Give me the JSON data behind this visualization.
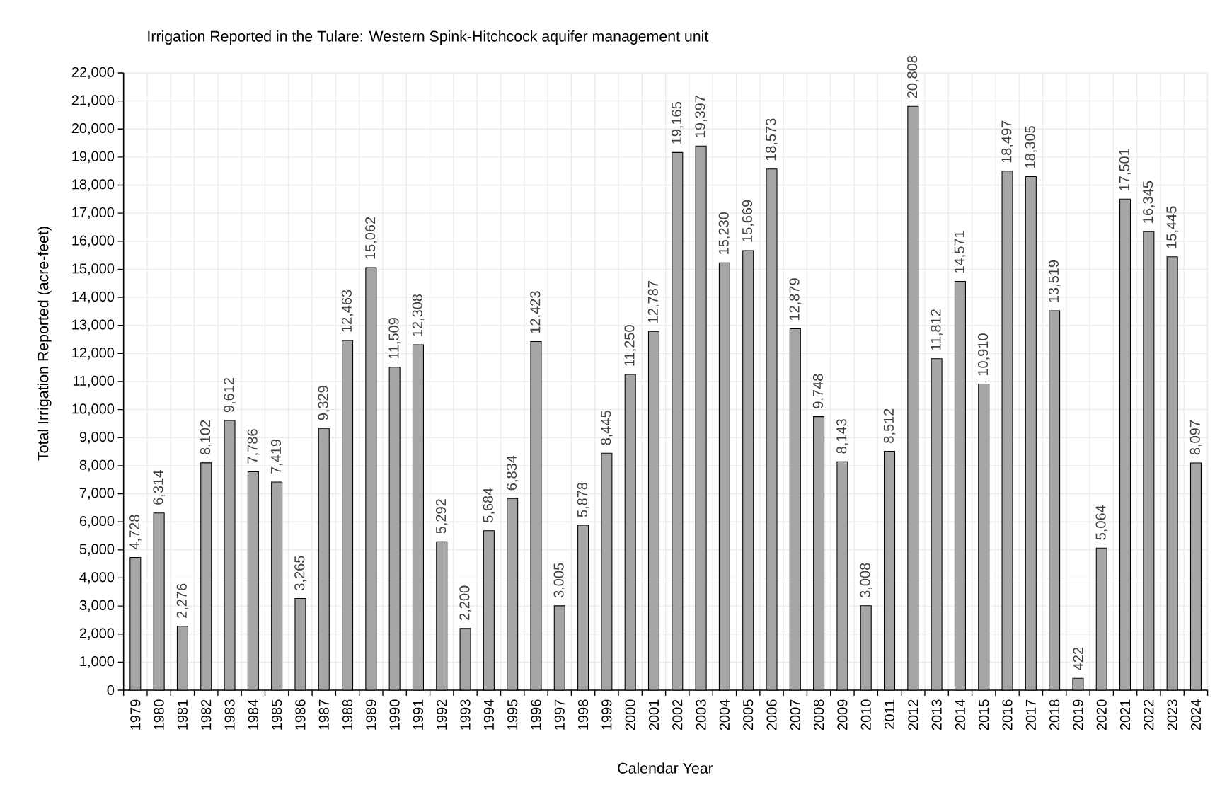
{
  "chart_data": {
    "type": "bar",
    "title": "Irrigation Reported in the Tulare: Western Spink-Hitchcock aquifer management unit",
    "xlabel": "Calendar Year",
    "ylabel": "Total Irrigation Reported (acre-feet)",
    "categories": [
      "1979",
      "1980",
      "1981",
      "1982",
      "1983",
      "1984",
      "1985",
      "1986",
      "1987",
      "1988",
      "1989",
      "1990",
      "1991",
      "1992",
      "1993",
      "1994",
      "1995",
      "1996",
      "1997",
      "1998",
      "1999",
      "2000",
      "2001",
      "2002",
      "2003",
      "2004",
      "2005",
      "2006",
      "2007",
      "2008",
      "2009",
      "2010",
      "2011",
      "2012",
      "2013",
      "2014",
      "2015",
      "2016",
      "2017",
      "2018",
      "2019",
      "2020",
      "2021",
      "2022",
      "2023",
      "2024"
    ],
    "values": [
      4728,
      6314,
      2276,
      8102,
      9612,
      7786,
      7419,
      3265,
      9329,
      12463,
      15062,
      11509,
      12308,
      5292,
      2200,
      5684,
      6834,
      12423,
      3005,
      5878,
      8445,
      11250,
      12787,
      19165,
      19397,
      15230,
      15669,
      18573,
      12879,
      9748,
      8143,
      3008,
      8512,
      20808,
      11812,
      14571,
      10910,
      18497,
      18305,
      13519,
      422,
      5064,
      17501,
      16345,
      15445,
      8097
    ],
    "value_labels": [
      "4,728",
      "6,314",
      "2,276",
      "8,102",
      "9,612",
      "7,786",
      "7,419",
      "3,265",
      "9,329",
      "12,463",
      "15,062",
      "11,509",
      "12,308",
      "5,292",
      "2,200",
      "5,684",
      "6,834",
      "12,423",
      "3,005",
      "5,878",
      "8,445",
      "11,250",
      "12,787",
      "19,165",
      "19,397",
      "15,230",
      "15,669",
      "18,573",
      "12,879",
      "9,748",
      "8,143",
      "3,008",
      "8,512",
      "20,808",
      "11,812",
      "14,571",
      "10,910",
      "18,497",
      "18,305",
      "13,519",
      "422",
      "5,064",
      "17,501",
      "16,345",
      "15,445",
      "8,097"
    ],
    "color": "#a6a6a6",
    "ylim": [
      0,
      22000
    ],
    "yticks": [
      0,
      {
        "value": 1000,
        "label": "1,000"
      },
      {
        "value": 2000,
        "label": "2,000"
      },
      {
        "value": 3000,
        "label": "3,000"
      },
      {
        "value": 4000,
        "label": "4,000"
      },
      {
        "value": 5000,
        "label": "5,000"
      },
      {
        "value": 6000,
        "label": "6,000"
      },
      {
        "value": 7000,
        "label": "7,000"
      },
      {
        "value": 8000,
        "label": "8,000"
      },
      {
        "value": 9000,
        "label": "9,000"
      },
      {
        "value": 10000,
        "label": "10,000"
      },
      {
        "value": 11000,
        "label": "11,000"
      },
      {
        "value": 12000,
        "label": "12,000"
      },
      {
        "value": 13000,
        "label": "13,000"
      },
      {
        "value": 14000,
        "label": "14,000"
      },
      {
        "value": 15000,
        "label": "15,000"
      },
      {
        "value": 16000,
        "label": "16,000"
      },
      {
        "value": 17000,
        "label": "17,000"
      },
      {
        "value": 18000,
        "label": "18,000"
      },
      {
        "value": 19000,
        "label": "19,000"
      },
      {
        "value": 20000,
        "label": "20,000"
      },
      {
        "value": 21000,
        "label": "21,000"
      },
      {
        "value": 22000,
        "label": "22,000"
      }
    ],
    "grid": true
  }
}
